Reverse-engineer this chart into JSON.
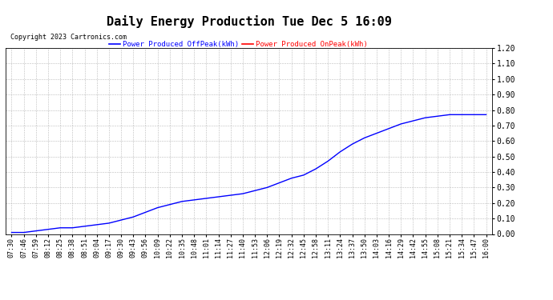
{
  "title": "Daily Energy Production Tue Dec 5 16:09",
  "copyright": "Copyright 2023 Cartronics.com",
  "legend_offpeak": "Power Produced OffPeak(kWh)",
  "legend_onpeak": "Power Produced OnPeak(kWh)",
  "legend_offpeak_color": "blue",
  "legend_onpeak_color": "red",
  "ylim": [
    0.0,
    1.2
  ],
  "yticks": [
    0.0,
    0.1,
    0.2,
    0.3,
    0.4,
    0.5,
    0.6,
    0.7,
    0.8,
    0.9,
    1.0,
    1.1,
    1.2
  ],
  "background_color": "#ffffff",
  "grid_color": "#aaaaaa",
  "line_color": "blue",
  "title_fontsize": 11,
  "copyright_fontsize": 6,
  "legend_fontsize": 6.5,
  "tick_fontsize": 6,
  "ytick_fontsize": 7,
  "xticks": [
    "07:30",
    "07:46",
    "07:59",
    "08:12",
    "08:25",
    "08:38",
    "08:51",
    "09:04",
    "09:17",
    "09:30",
    "09:43",
    "09:56",
    "10:09",
    "10:22",
    "10:35",
    "10:48",
    "11:01",
    "11:14",
    "11:27",
    "11:40",
    "11:53",
    "12:06",
    "12:19",
    "12:32",
    "12:45",
    "12:58",
    "13:11",
    "13:24",
    "13:37",
    "13:50",
    "14:03",
    "14:16",
    "14:29",
    "14:42",
    "14:55",
    "15:08",
    "15:21",
    "15:34",
    "15:47",
    "16:00"
  ],
  "ydata": [
    0.01,
    0.01,
    0.02,
    0.03,
    0.04,
    0.04,
    0.05,
    0.06,
    0.07,
    0.09,
    0.11,
    0.14,
    0.17,
    0.19,
    0.21,
    0.22,
    0.23,
    0.24,
    0.25,
    0.26,
    0.28,
    0.3,
    0.33,
    0.36,
    0.38,
    0.42,
    0.47,
    0.53,
    0.58,
    0.62,
    0.65,
    0.68,
    0.71,
    0.73,
    0.75,
    0.76,
    0.77,
    0.77,
    0.77,
    0.77
  ]
}
